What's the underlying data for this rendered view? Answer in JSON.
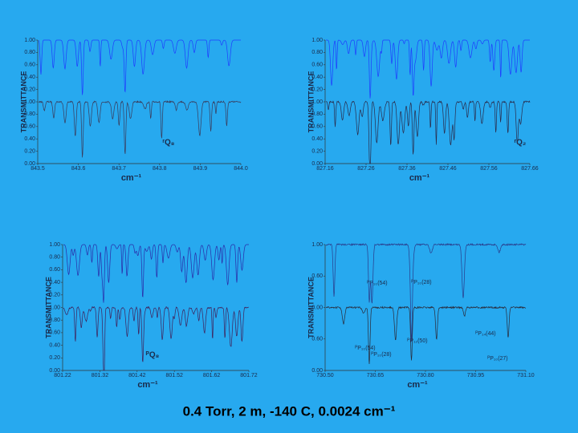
{
  "chart_data": [
    {
      "type": "spectrum",
      "y_label": "TRANSMITTANCE",
      "x_label": "cm⁻¹",
      "y_labels": [
        "1.00",
        "0.80",
        "0.60",
        "0.40",
        "0.20",
        "1.00",
        "0.80",
        "0.60",
        "0.40",
        "0.20",
        "0.00"
      ],
      "xlim": [
        843.5,
        844.0
      ],
      "xticks": [
        843.5,
        843.6,
        843.7,
        843.8,
        843.9,
        {
          "value": 844.0,
          "label": "844.0"
        }
      ],
      "annotations": [
        "ʳQ₈"
      ]
    },
    {
      "type": "spectrum",
      "y_label": "TRANSMITTANCE",
      "x_label": "cm⁻¹",
      "y_labels": [
        "1.00",
        "0.80",
        "0.60",
        "0.40",
        "0.20",
        "1.00",
        "0.80",
        "0.60",
        "0.40",
        "0.20",
        "0.00"
      ],
      "xlim": [
        827.16,
        827.66
      ],
      "xticks": [
        827.16,
        827.26,
        827.36,
        827.46,
        827.56,
        827.66
      ],
      "annotations": [
        "ʳQ₂"
      ]
    },
    {
      "type": "spectrum",
      "y_label": "TRANSMITTANCE",
      "x_label": "cm⁻¹",
      "y_labels": [
        "1.00",
        "0.80",
        "0.60",
        "0.40",
        "0.20",
        "1.00",
        "0.80",
        "0.60",
        "0.40",
        "0.20",
        "0.00"
      ],
      "xlim": [
        801.22,
        801.72
      ],
      "xticks": [
        801.22,
        801.32,
        801.42,
        801.52,
        801.62,
        801.72
      ],
      "annotations": [
        "ᴾQ₈"
      ]
    },
    {
      "type": "spectrum",
      "y_label": "TRANSMITTANCE",
      "x_label": "cm⁻¹",
      "y_labels": [
        "1.00",
        "0.60",
        "0.00",
        "0.60",
        "0.00"
      ],
      "xlim": [
        730.5,
        731.1
      ],
      "xticks": [
        {
          "value": 730.5,
          "label": "730.50"
        },
        730.65,
        {
          "value": 730.8,
          "label": "730.80"
        },
        730.95,
        {
          "value": 731.1,
          "label": "731.10"
        }
      ],
      "annotations": [
        "ᴾP₁₀(54)",
        "ᴾP₁₀(28)",
        "ᴾP₁₂(50)",
        "ᴾP₁₄(44)",
        "ᴾP₁₀(54)",
        "ᴾP₁₀(28)",
        "ᴾP₁₀(27)"
      ]
    }
  ],
  "caption": "0.4 Torr, 2 m, -140 C, 0.0024 cm⁻¹"
}
